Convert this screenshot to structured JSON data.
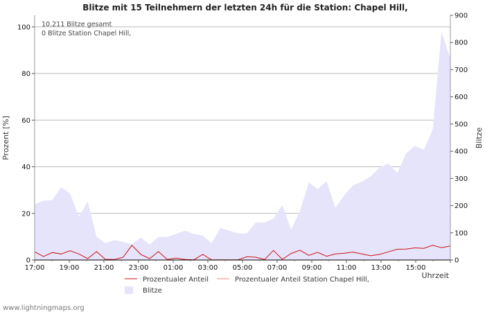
{
  "chart_data": {
    "type": "area",
    "title": "Blitze mit 15 Teilnehmern der letzten 24h für die Station: Chapel Hill,",
    "ylabel_left": "Prozent   [%]",
    "ylabel_right": "Blitze",
    "xlabel": "Uhrzeit",
    "ylim_left": [
      0,
      105
    ],
    "ylim_right": [
      0,
      900
    ],
    "yticks_left": [
      0,
      20,
      40,
      60,
      80,
      100
    ],
    "yticks_right": [
      0,
      100,
      200,
      300,
      400,
      500,
      600,
      700,
      800,
      900
    ],
    "xticks": [
      "17:00",
      "19:00",
      "21:00",
      "23:00",
      "01:00",
      "03:00",
      "05:00",
      "07:00",
      "09:00",
      "11:00",
      "13:00",
      "15:00"
    ],
    "info_lines": [
      "10.211 Blitze gesamt",
      "0 Blitze Station Chapel Hill,"
    ],
    "series": [
      {
        "name": "Blitze",
        "axis": "right",
        "color": "#e6e4fb",
        "values": [
          205,
          218,
          220,
          268,
          244,
          160,
          215,
          85,
          62,
          73,
          67,
          58,
          82,
          57,
          85,
          85,
          96,
          108,
          96,
          90,
          62,
          118,
          108,
          98,
          98,
          138,
          138,
          152,
          202,
          112,
          180,
          285,
          260,
          290,
          192,
          238,
          275,
          288,
          308,
          340,
          355,
          320,
          392,
          420,
          405,
          480,
          840,
          740
        ]
      },
      {
        "name": "Prozentualer Anteil",
        "axis": "left",
        "color": "#cc1111",
        "values": [
          3.5,
          1.5,
          3.2,
          2.6,
          4.0,
          2.6,
          0.6,
          3.6,
          0.3,
          0.2,
          1.2,
          6.3,
          2.4,
          0.6,
          3.6,
          0.2,
          0.8,
          0.2,
          0.1,
          2.4,
          0.1,
          0.1,
          0.1,
          0.1,
          1.4,
          1.2,
          0.2,
          4.1,
          0.3,
          2.8,
          4.2,
          2.0,
          3.3,
          1.6,
          2.6,
          2.9,
          3.4,
          2.6,
          1.8,
          2.4,
          3.5,
          4.6,
          4.7,
          5.2,
          5.0,
          6.3,
          5.3,
          6.0
        ]
      },
      {
        "name": "Prozentualer Anteil Station Chapel Hill,",
        "axis": "left",
        "color": "#f08a8a",
        "values": [
          0,
          0,
          0,
          0,
          0,
          0,
          0,
          0,
          0,
          0,
          0,
          0,
          0,
          0,
          0,
          0,
          0,
          0,
          0,
          0,
          0,
          0,
          0,
          0,
          0,
          0,
          0,
          0,
          0,
          0,
          0,
          0,
          0,
          0,
          0,
          0,
          0,
          0,
          0,
          0,
          0,
          0,
          0,
          0,
          0,
          0,
          0,
          0
        ]
      }
    ]
  },
  "footer": "www.lightningmaps.org"
}
